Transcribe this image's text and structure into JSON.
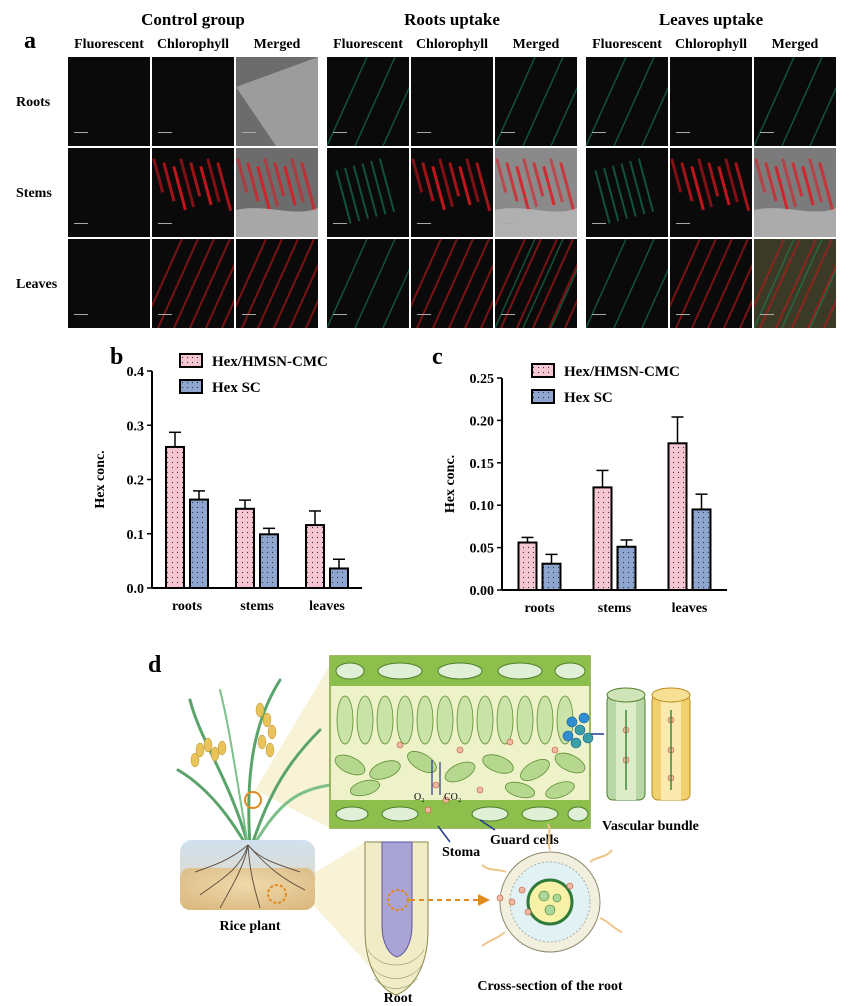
{
  "panel_a": {
    "letter": "a",
    "groups": [
      {
        "title": "Control group",
        "columns": [
          "Fluorescent",
          "Chlorophyll",
          "Merged"
        ]
      },
      {
        "title": "Roots uptake",
        "columns": [
          "Fluorescent",
          "Chlorophyll",
          "Merged"
        ]
      },
      {
        "title": "Leaves uptake",
        "columns": [
          "Fluorescent",
          "Chlorophyll",
          "Merged"
        ]
      }
    ],
    "rows": [
      "Roots",
      "Stems",
      "Leaves"
    ]
  },
  "panel_b_letter": "b",
  "panel_c_letter": "c",
  "chart_data": [
    {
      "type": "bar",
      "categories": [
        "roots",
        "stems",
        "leaves"
      ],
      "series": [
        {
          "name": "Hex/HMSN-CMC",
          "values": [
            0.26,
            0.146,
            0.116
          ],
          "errors": [
            0.027,
            0.016,
            0.026
          ],
          "color": "#f7c6d3"
        },
        {
          "name": "Hex SC",
          "values": [
            0.163,
            0.099,
            0.036
          ],
          "errors": [
            0.016,
            0.011,
            0.017
          ],
          "color": "#8ea6cf"
        }
      ],
      "ylabel": "Hex conc.",
      "ylim": [
        0,
        0.4
      ],
      "yticks": [
        "0.0",
        "0.1",
        "0.2",
        "0.3",
        "0.4"
      ],
      "legend": "top"
    },
    {
      "type": "bar",
      "categories": [
        "roots",
        "stems",
        "leaves"
      ],
      "series": [
        {
          "name": "Hex/HMSN-CMC",
          "values": [
            0.056,
            0.121,
            0.173
          ],
          "errors": [
            0.006,
            0.02,
            0.031
          ],
          "color": "#f7c6d3"
        },
        {
          "name": "Hex SC",
          "values": [
            0.031,
            0.051,
            0.095
          ],
          "errors": [
            0.011,
            0.008,
            0.018
          ],
          "color": "#8ea6cf"
        }
      ],
      "ylabel": "Hex conc.",
      "ylim": [
        0,
        0.25
      ],
      "yticks": [
        "0.00",
        "0.05",
        "0.10",
        "0.15",
        "0.20",
        "0.25"
      ],
      "legend": "top"
    }
  ],
  "panel_d": {
    "letter": "d",
    "labels": {
      "vascular": "Vascular bundle",
      "guard": "Guard cells",
      "stoma": "Stoma",
      "rice": "Rice plant",
      "root": "Root",
      "cross": "Cross-section of the root",
      "o2": "O₂",
      "co2": "CO₂"
    }
  }
}
